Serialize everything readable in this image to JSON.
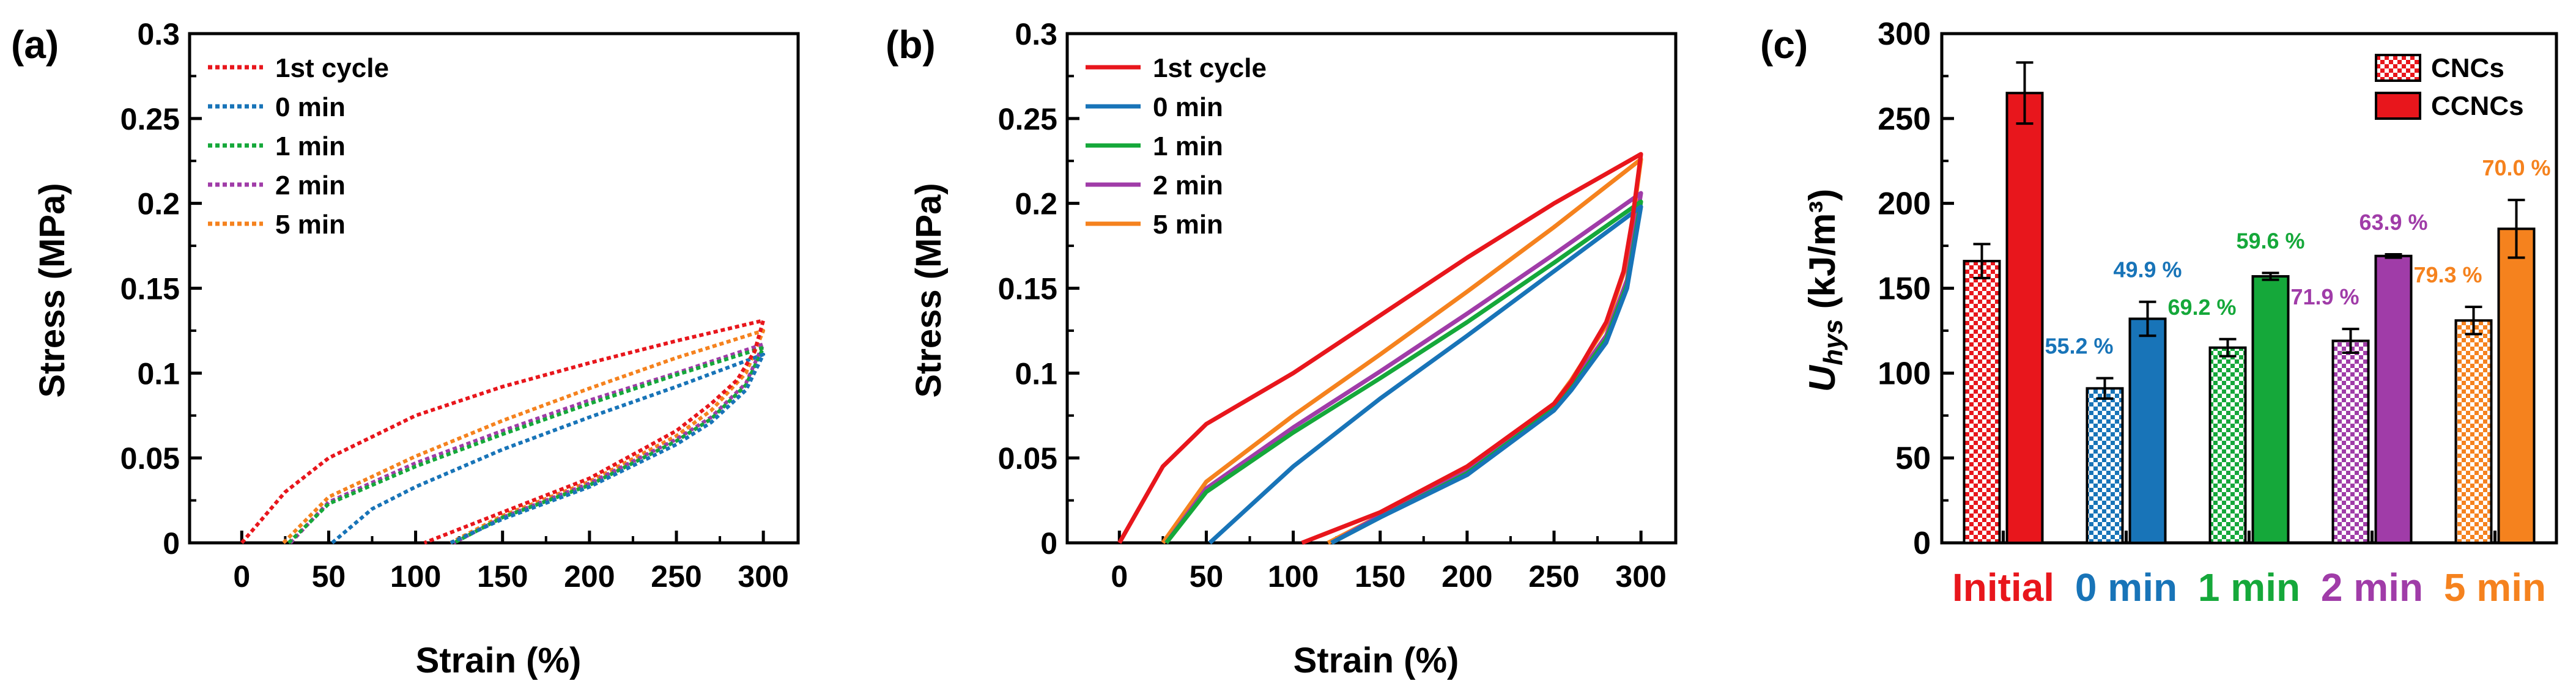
{
  "figure": {
    "panel_labels": [
      "(a)",
      "(b)",
      "(c)"
    ]
  },
  "legend_ab": [
    "1st cycle",
    "0 min",
    "1 min",
    "2 min",
    "5 min"
  ],
  "legend_c": [
    "CNCs",
    "CCNCs"
  ],
  "colors": {
    "1st cycle": "#e8161c",
    "0 min": "#1874b8",
    "1 min": "#15a83a",
    "2 min": "#a03ca8",
    "5 min": "#f5821e"
  },
  "chart_data": [
    {
      "panel": "(a)",
      "type": "line",
      "line_style": "dotted",
      "xlabel": "Strain (%)",
      "ylabel": "Stress (MPa)",
      "xlim": [
        -30,
        320
      ],
      "ylim": [
        0,
        0.3
      ],
      "xticks": [
        "0",
        "50",
        "100",
        "150",
        "200",
        "250",
        "300"
      ],
      "yticks": [
        "0",
        "0.05",
        "0.1",
        "0.15",
        "0.2",
        "0.25",
        "0.3"
      ],
      "legend_position": "top-left",
      "series": [
        {
          "name": "1st cycle",
          "loading": [
            [
              0,
              0
            ],
            [
              25,
              0.03
            ],
            [
              50,
              0.05
            ],
            [
              100,
              0.075
            ],
            [
              150,
              0.092
            ],
            [
              200,
              0.106
            ],
            [
              250,
              0.119
            ],
            [
              300,
              0.131
            ]
          ],
          "unloading": [
            [
              300,
              0.131
            ],
            [
              295,
              0.113
            ],
            [
              285,
              0.096
            ],
            [
              270,
              0.082
            ],
            [
              250,
              0.066
            ],
            [
              200,
              0.038
            ],
            [
              150,
              0.018
            ],
            [
              105,
              0
            ]
          ]
        },
        {
          "name": "0 min",
          "loading": [
            [
              52,
              0
            ],
            [
              75,
              0.02
            ],
            [
              100,
              0.033
            ],
            [
              150,
              0.055
            ],
            [
              200,
              0.074
            ],
            [
              250,
              0.092
            ],
            [
              300,
              0.111
            ]
          ],
          "unloading": [
            [
              300,
              0.111
            ],
            [
              290,
              0.09
            ],
            [
              270,
              0.071
            ],
            [
              250,
              0.058
            ],
            [
              200,
              0.033
            ],
            [
              150,
              0.014
            ],
            [
              120,
              0
            ]
          ]
        },
        {
          "name": "1 min",
          "loading": [
            [
              27,
              0
            ],
            [
              50,
              0.023
            ],
            [
              100,
              0.045
            ],
            [
              150,
              0.064
            ],
            [
              200,
              0.082
            ],
            [
              250,
              0.099
            ],
            [
              300,
              0.115
            ]
          ],
          "unloading": [
            [
              300,
              0.115
            ],
            [
              290,
              0.093
            ],
            [
              270,
              0.073
            ],
            [
              250,
              0.06
            ],
            [
              200,
              0.034
            ],
            [
              150,
              0.015
            ],
            [
              122,
              0
            ]
          ]
        },
        {
          "name": "2 min",
          "loading": [
            [
              28,
              0
            ],
            [
              50,
              0.024
            ],
            [
              100,
              0.047
            ],
            [
              150,
              0.066
            ],
            [
              200,
              0.084
            ],
            [
              250,
              0.1
            ],
            [
              300,
              0.117
            ]
          ],
          "unloading": [
            [
              300,
              0.117
            ],
            [
              290,
              0.094
            ],
            [
              270,
              0.074
            ],
            [
              250,
              0.061
            ],
            [
              200,
              0.035
            ],
            [
              150,
              0.015
            ],
            [
              122,
              0
            ]
          ]
        },
        {
          "name": "5 min",
          "loading": [
            [
              24,
              0
            ],
            [
              50,
              0.027
            ],
            [
              100,
              0.051
            ],
            [
              150,
              0.072
            ],
            [
              200,
              0.091
            ],
            [
              250,
              0.109
            ],
            [
              300,
              0.125
            ]
          ],
          "unloading": [
            [
              300,
              0.125
            ],
            [
              290,
              0.1
            ],
            [
              270,
              0.078
            ],
            [
              250,
              0.063
            ],
            [
              200,
              0.036
            ],
            [
              150,
              0.016
            ],
            [
              120,
              0
            ]
          ]
        }
      ]
    },
    {
      "panel": "(b)",
      "type": "line",
      "line_style": "solid",
      "xlabel": "Strain (%)",
      "ylabel": "Stress (MPa)",
      "xlim": [
        -30,
        320
      ],
      "ylim": [
        0,
        0.3
      ],
      "xticks": [
        "0",
        "50",
        "100",
        "150",
        "200",
        "250",
        "300"
      ],
      "yticks": [
        "0",
        "0.05",
        "0.1",
        "0.15",
        "0.2",
        "0.25",
        "0.3"
      ],
      "legend_position": "top-left",
      "series": [
        {
          "name": "1st cycle",
          "loading": [
            [
              0,
              0
            ],
            [
              25,
              0.045
            ],
            [
              50,
              0.07
            ],
            [
              100,
              0.1
            ],
            [
              150,
              0.134
            ],
            [
              200,
              0.168
            ],
            [
              250,
              0.2
            ],
            [
              300,
              0.229
            ]
          ],
          "unloading": [
            [
              300,
              0.229
            ],
            [
              295,
              0.19
            ],
            [
              290,
              0.16
            ],
            [
              280,
              0.13
            ],
            [
              260,
              0.095
            ],
            [
              250,
              0.082
            ],
            [
              200,
              0.045
            ],
            [
              150,
              0.018
            ],
            [
              105,
              0
            ]
          ]
        },
        {
          "name": "0 min",
          "loading": [
            [
              52,
              0
            ],
            [
              100,
              0.045
            ],
            [
              150,
              0.085
            ],
            [
              200,
              0.122
            ],
            [
              250,
              0.16
            ],
            [
              300,
              0.198
            ]
          ],
          "unloading": [
            [
              300,
              0.198
            ],
            [
              292,
              0.15
            ],
            [
              280,
              0.118
            ],
            [
              260,
              0.09
            ],
            [
              250,
              0.078
            ],
            [
              200,
              0.04
            ],
            [
              150,
              0.015
            ],
            [
              122,
              0
            ]
          ]
        },
        {
          "name": "1 min",
          "loading": [
            [
              27,
              0
            ],
            [
              50,
              0.03
            ],
            [
              100,
              0.065
            ],
            [
              150,
              0.097
            ],
            [
              200,
              0.13
            ],
            [
              250,
              0.165
            ],
            [
              300,
              0.201
            ]
          ],
          "unloading": [
            [
              300,
              0.201
            ],
            [
              292,
              0.152
            ],
            [
              280,
              0.12
            ],
            [
              260,
              0.091
            ],
            [
              250,
              0.079
            ],
            [
              200,
              0.041
            ],
            [
              150,
              0.015
            ],
            [
              122,
              0
            ]
          ]
        },
        {
          "name": "2 min",
          "loading": [
            [
              27,
              0
            ],
            [
              50,
              0.032
            ],
            [
              100,
              0.068
            ],
            [
              150,
              0.101
            ],
            [
              200,
              0.135
            ],
            [
              250,
              0.17
            ],
            [
              300,
              0.206
            ]
          ],
          "unloading": [
            [
              300,
              0.206
            ],
            [
              292,
              0.155
            ],
            [
              280,
              0.122
            ],
            [
              260,
              0.093
            ],
            [
              250,
              0.08
            ],
            [
              200,
              0.042
            ],
            [
              150,
              0.016
            ],
            [
              122,
              0
            ]
          ]
        },
        {
          "name": "5 min",
          "loading": [
            [
              25,
              0
            ],
            [
              50,
              0.036
            ],
            [
              100,
              0.075
            ],
            [
              150,
              0.111
            ],
            [
              200,
              0.148
            ],
            [
              250,
              0.186
            ],
            [
              300,
              0.226
            ]
          ],
          "unloading": [
            [
              300,
              0.226
            ],
            [
              292,
              0.165
            ],
            [
              280,
              0.128
            ],
            [
              260,
              0.096
            ],
            [
              250,
              0.082
            ],
            [
              200,
              0.043
            ],
            [
              150,
              0.016
            ],
            [
              120,
              0
            ]
          ]
        }
      ]
    },
    {
      "panel": "(c)",
      "type": "bar",
      "xlabel": "",
      "ylabel": "Uhys (kJ/m³)",
      "ylabel_main": "U",
      "ylabel_sub": "hys",
      "ylabel_units": " (kJ/m³)",
      "ylim": [
        0,
        300
      ],
      "yticks": [
        "0",
        "50",
        "100",
        "150",
        "200",
        "250",
        "300"
      ],
      "categories": [
        "Initial",
        "0 min",
        "1 min",
        "2 min",
        "5 min"
      ],
      "legend_position": "top-right",
      "series": [
        {
          "name": "CNCs",
          "pattern": "checkered",
          "values": [
            166,
            91,
            115,
            119,
            131
          ],
          "errors": [
            10,
            6,
            5,
            7,
            8
          ],
          "annotations": [
            "",
            "55.2 %",
            "69.2 %",
            "71.9 %",
            "79.3 %"
          ]
        },
        {
          "name": "CCNCs",
          "pattern": "solid",
          "values": [
            265,
            132,
            157,
            169,
            185
          ],
          "errors": [
            18,
            10,
            2,
            1,
            17
          ],
          "annotations": [
            "",
            "49.9 %",
            "59.6 %",
            "63.9 %",
            "70.0 %"
          ]
        }
      ]
    }
  ]
}
